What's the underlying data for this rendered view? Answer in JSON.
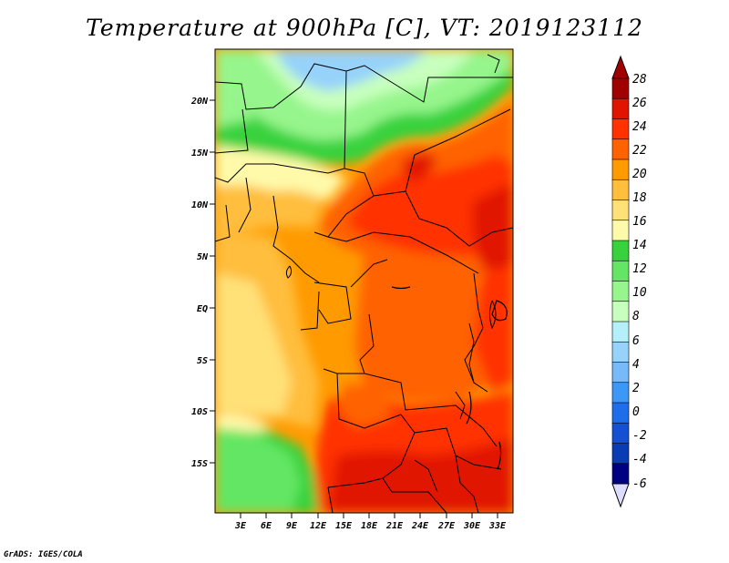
{
  "title": "Temperature at 900hPa [C], VT: 2019123112",
  "credit": "GrADS: IGES/COLA",
  "map": {
    "lat_labels": [
      "20N",
      "15N",
      "10N",
      "5N",
      "EQ",
      "5S",
      "10S",
      "15S"
    ],
    "lon_labels": [
      "3E",
      "6E",
      "9E",
      "12E",
      "15E",
      "18E",
      "21E",
      "24E",
      "27E",
      "30E",
      "33E"
    ]
  },
  "colorbar": {
    "labels": [
      "28",
      "26",
      "24",
      "22",
      "20",
      "18",
      "16",
      "14",
      "12",
      "10",
      "8",
      "6",
      "4",
      "2",
      "0",
      "-2",
      "-4",
      "-6"
    ],
    "colors": [
      "#a00000",
      "#e11400",
      "#ff3200",
      "#ff6200",
      "#ff9a00",
      "#ffbe3c",
      "#ffe178",
      "#fffaaa",
      "#37d23c",
      "#64e664",
      "#96f58c",
      "#c8ffbe",
      "#b4f0fa",
      "#96d2fa",
      "#78b9fa",
      "#3c97f5",
      "#1e6eeb",
      "#1450d2",
      "#0a3cb4",
      "#000082"
    ],
    "top_cap": "#a00000",
    "bottom_cap": "#dcdcff"
  }
}
